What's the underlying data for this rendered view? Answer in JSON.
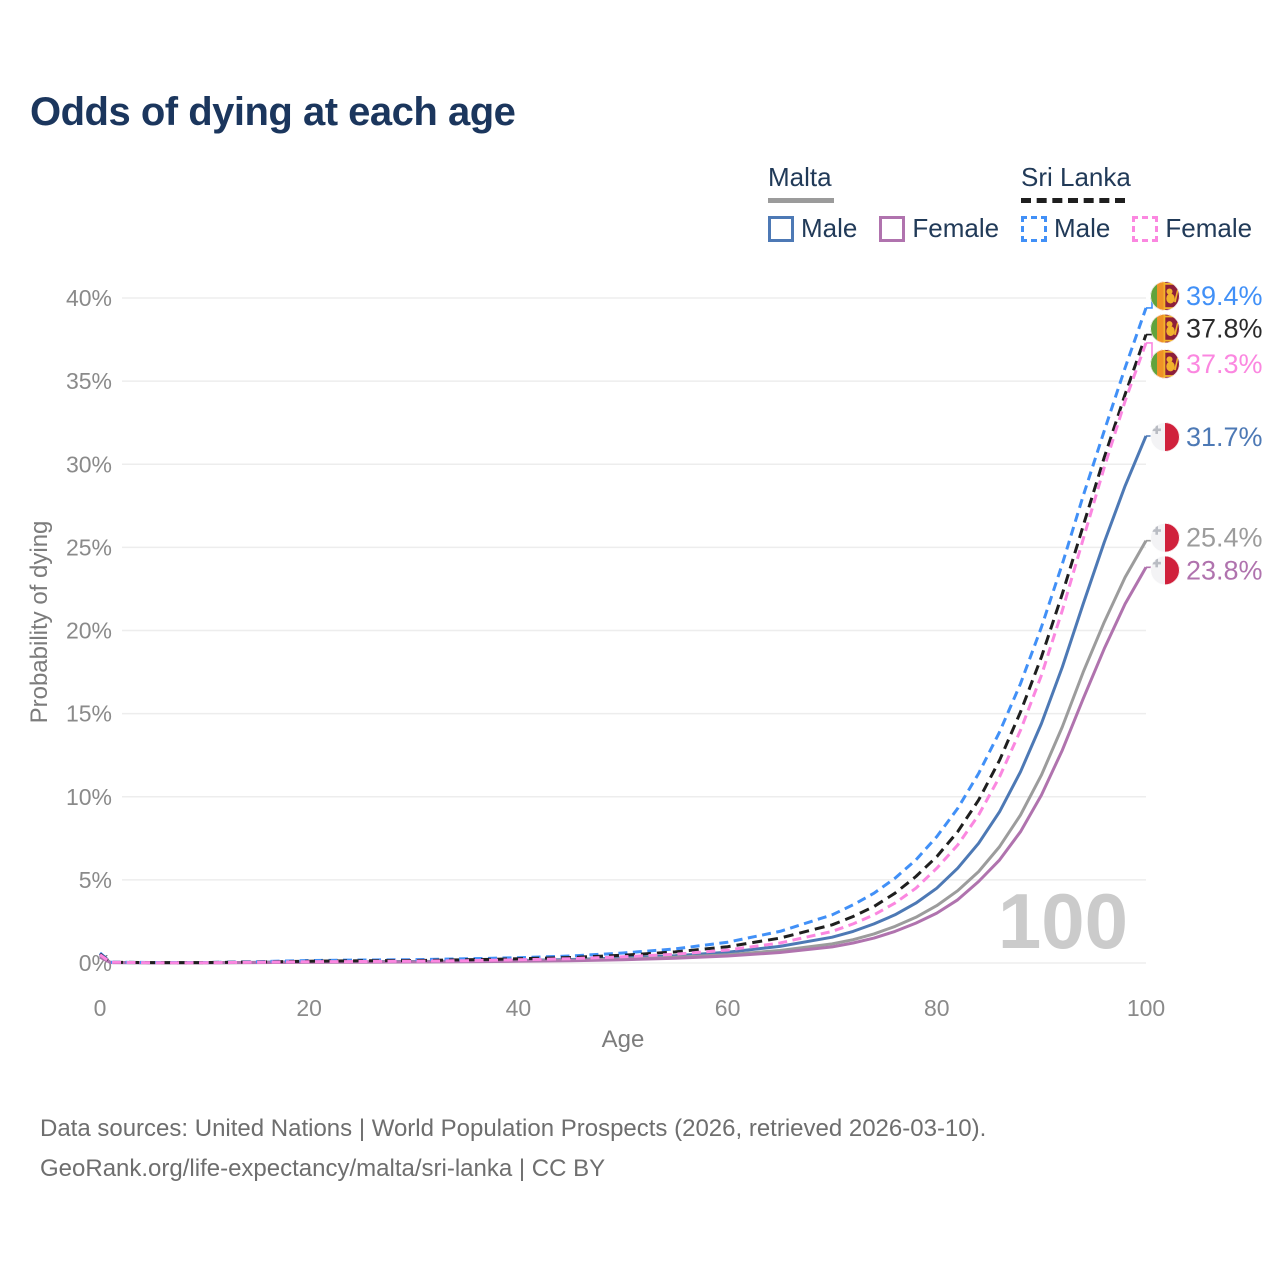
{
  "title": "Odds of dying at each age",
  "legend": {
    "groups": [
      {
        "label": "Malta",
        "line_style": "solid",
        "sample_color": "#9b9b9b",
        "items": [
          {
            "label": "Male",
            "color": "#4d79b5"
          },
          {
            "label": "Female",
            "color": "#b073ae"
          }
        ]
      },
      {
        "label": "Sri Lanka",
        "line_style": "dashed",
        "sample_color": "#1f1f1f",
        "items": [
          {
            "label": "Male",
            "color": "#4190f7"
          },
          {
            "label": "Female",
            "color": "#fb87e0"
          }
        ]
      }
    ]
  },
  "watermark_age": "100",
  "footer": {
    "line1": "Data sources: United Nations | World Population Prospects (2026, retrieved 2026-03-10).",
    "line2": "GeoRank.org/life-expectancy/malta/sri-lanka | CC BY"
  },
  "chart_data": {
    "type": "line",
    "title": "Odds of dying at each age",
    "xlabel": "Age",
    "ylabel": "Probability of dying",
    "xlim": [
      0,
      100
    ],
    "ylim": [
      0,
      40
    ],
    "x_ticks": [
      0,
      20,
      40,
      60,
      80,
      100
    ],
    "y_tick_labels": [
      "0%",
      "5%",
      "10%",
      "15%",
      "20%",
      "25%",
      "30%",
      "35%",
      "40%"
    ],
    "grid": true,
    "legend_position": "top-right",
    "x": [
      0,
      1,
      5,
      10,
      15,
      20,
      25,
      30,
      35,
      40,
      45,
      50,
      55,
      60,
      65,
      70,
      72,
      74,
      76,
      78,
      80,
      82,
      84,
      86,
      88,
      90,
      92,
      94,
      96,
      98,
      100
    ],
    "series": [
      {
        "name": "Sri Lanka Male",
        "country": "Sri Lanka",
        "group_label": "Male",
        "color": "#4190f7",
        "dashed": true,
        "flag": "sri-lanka",
        "end_label": "39.4%",
        "label_color": "#4190f7",
        "values": [
          0.6,
          0.05,
          0.03,
          0.03,
          0.08,
          0.15,
          0.18,
          0.2,
          0.25,
          0.32,
          0.42,
          0.6,
          0.85,
          1.25,
          1.9,
          2.9,
          3.5,
          4.2,
          5.1,
          6.2,
          7.6,
          9.3,
          11.4,
          13.9,
          16.8,
          20.2,
          24.0,
          28.1,
          32.0,
          35.8,
          39.4
        ]
      },
      {
        "name": "Sri Lanka",
        "country": "Sri Lanka",
        "group_label": "Sri Lanka",
        "color": "#1f1f1f",
        "dashed": true,
        "flag": "sri-lanka",
        "end_label": "37.8%",
        "label_color": "#2b2b2b",
        "values": [
          0.55,
          0.04,
          0.025,
          0.025,
          0.06,
          0.11,
          0.13,
          0.15,
          0.19,
          0.25,
          0.33,
          0.47,
          0.67,
          0.98,
          1.5,
          2.3,
          2.8,
          3.4,
          4.2,
          5.2,
          6.4,
          7.9,
          9.8,
          12.2,
          15.1,
          18.4,
          22.2,
          26.3,
          30.4,
          34.2,
          37.8
        ]
      },
      {
        "name": "Sri Lanka Female",
        "country": "Sri Lanka",
        "group_label": "Female",
        "color": "#fb87e0",
        "dashed": true,
        "flag": "sri-lanka",
        "end_label": "37.3%",
        "label_color": "#fb87e0",
        "values": [
          0.5,
          0.04,
          0.02,
          0.02,
          0.05,
          0.08,
          0.09,
          0.11,
          0.14,
          0.19,
          0.26,
          0.37,
          0.53,
          0.78,
          1.2,
          1.9,
          2.35,
          2.9,
          3.6,
          4.5,
          5.7,
          7.1,
          8.9,
          11.2,
          14.0,
          17.3,
          21.2,
          25.5,
          29.8,
          33.8,
          37.3
        ]
      },
      {
        "name": "Malta Male",
        "country": "Malta",
        "group_label": "Male",
        "color": "#4d79b5",
        "dashed": false,
        "flag": "malta",
        "end_label": "31.7%",
        "label_color": "#4d79b5",
        "values": [
          0.45,
          0.03,
          0.02,
          0.02,
          0.04,
          0.07,
          0.08,
          0.09,
          0.11,
          0.15,
          0.21,
          0.3,
          0.44,
          0.65,
          1.0,
          1.55,
          1.9,
          2.35,
          2.9,
          3.6,
          4.5,
          5.7,
          7.2,
          9.1,
          11.5,
          14.4,
          17.8,
          21.6,
          25.3,
          28.7,
          31.7
        ]
      },
      {
        "name": "Malta",
        "country": "Malta",
        "group_label": "Malta",
        "color": "#9c9c9c",
        "dashed": false,
        "flag": "malta",
        "end_label": "25.4%",
        "label_color": "#9c9c9c",
        "values": [
          0.4,
          0.03,
          0.015,
          0.015,
          0.03,
          0.05,
          0.06,
          0.07,
          0.09,
          0.12,
          0.17,
          0.24,
          0.35,
          0.5,
          0.75,
          1.15,
          1.4,
          1.75,
          2.2,
          2.75,
          3.45,
          4.35,
          5.5,
          7.0,
          8.9,
          11.3,
          14.2,
          17.5,
          20.5,
          23.2,
          25.4
        ]
      },
      {
        "name": "Malta Female",
        "country": "Malta",
        "group_label": "Female",
        "color": "#b073ae",
        "dashed": false,
        "flag": "malta",
        "end_label": "23.8%",
        "label_color": "#b073ae",
        "values": [
          0.35,
          0.025,
          0.012,
          0.012,
          0.025,
          0.04,
          0.05,
          0.06,
          0.075,
          0.1,
          0.14,
          0.2,
          0.29,
          0.42,
          0.63,
          0.97,
          1.2,
          1.5,
          1.9,
          2.4,
          3.0,
          3.8,
          4.9,
          6.2,
          7.9,
          10.1,
          12.8,
          15.9,
          18.9,
          21.6,
          23.8
        ]
      }
    ]
  }
}
